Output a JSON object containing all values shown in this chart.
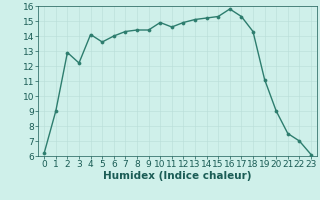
{
  "x": [
    0,
    1,
    2,
    3,
    4,
    5,
    6,
    7,
    8,
    9,
    10,
    11,
    12,
    13,
    14,
    15,
    16,
    17,
    18,
    19,
    20,
    21,
    22,
    23
  ],
  "y": [
    6.2,
    9.0,
    12.9,
    12.2,
    14.1,
    13.6,
    14.0,
    14.3,
    14.4,
    14.4,
    14.9,
    14.6,
    14.9,
    15.1,
    15.2,
    15.3,
    15.8,
    15.3,
    14.3,
    11.1,
    9.0,
    7.5,
    7.0,
    6.1
  ],
  "line_color": "#2d7d6e",
  "marker_color": "#2d7d6e",
  "bg_color": "#cff0ea",
  "grid_major_color": "#ffffff",
  "grid_minor_color": "#e0f7f3",
  "xlabel": "Humidex (Indice chaleur)",
  "xlim": [
    -0.5,
    23.5
  ],
  "ylim": [
    6,
    16
  ],
  "yticks": [
    6,
    7,
    8,
    9,
    10,
    11,
    12,
    13,
    14,
    15,
    16
  ],
  "xticks": [
    0,
    1,
    2,
    3,
    4,
    5,
    6,
    7,
    8,
    9,
    10,
    11,
    12,
    13,
    14,
    15,
    16,
    17,
    18,
    19,
    20,
    21,
    22,
    23
  ],
  "font_color": "#1a5c55",
  "tick_fontsize": 6.5,
  "label_fontsize": 7.5,
  "linewidth": 1.0,
  "markersize": 2.2
}
